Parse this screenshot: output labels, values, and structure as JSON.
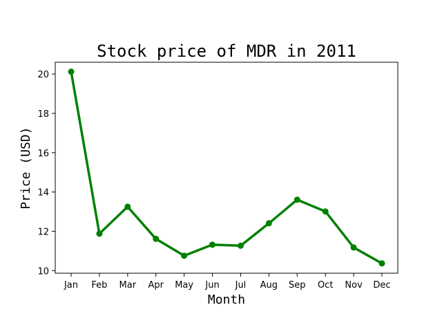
{
  "chart_data": {
    "type": "line",
    "title": "Stock price of MDR in 2011",
    "xlabel": "Month",
    "ylabel": "Price (USD)",
    "categories": [
      "Jan",
      "Feb",
      "Mar",
      "Apr",
      "May",
      "Jun",
      "Jul",
      "Aug",
      "Sep",
      "Oct",
      "Nov",
      "Dec"
    ],
    "series": [
      {
        "values": [
          20.12,
          11.88,
          13.25,
          11.62,
          10.76,
          11.32,
          11.27,
          12.41,
          13.61,
          13.01,
          11.18,
          10.37
        ],
        "color": "#008000",
        "marker": "circle"
      }
    ],
    "yticks": [
      "10",
      "12",
      "14",
      "16",
      "18",
      "20"
    ],
    "ylim": [
      9.87,
      20.6
    ],
    "grid": false,
    "legend": false
  }
}
